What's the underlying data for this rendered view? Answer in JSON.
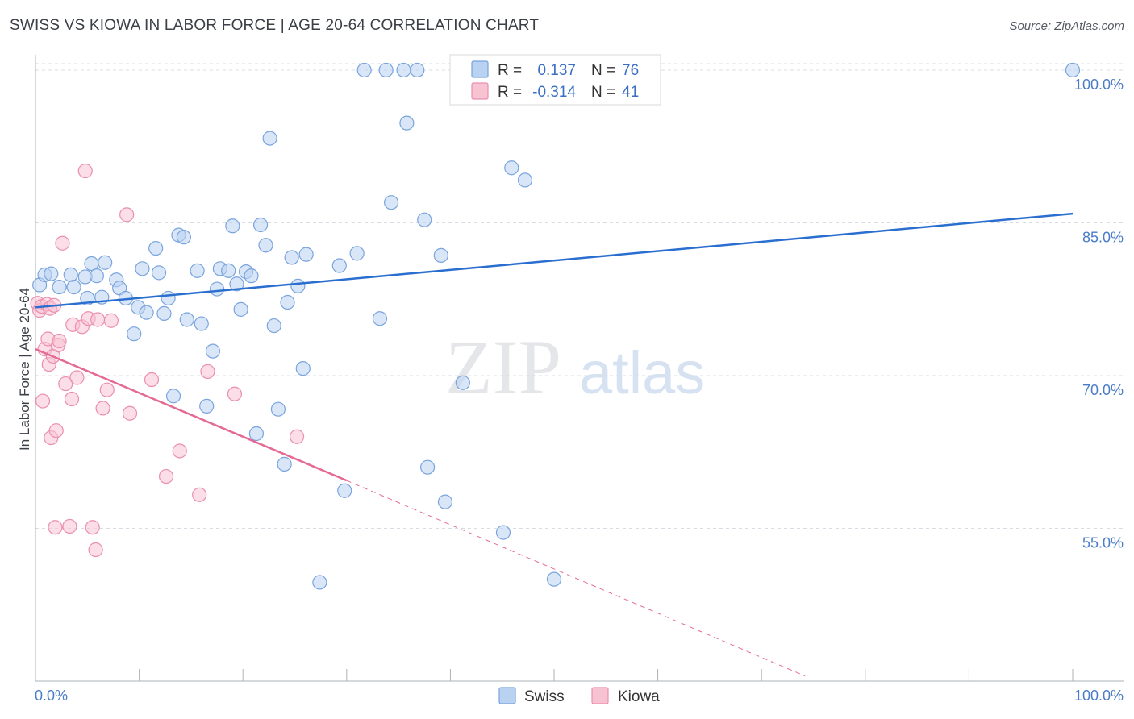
{
  "header": {
    "title": "SWISS VS KIOWA IN LABOR FORCE | AGE 20-64 CORRELATION CHART",
    "source": "Source: ZipAtlas.com"
  },
  "watermark": {
    "zip": "ZIP",
    "atlas": "atlas"
  },
  "colors": {
    "swiss_fill": "#b9d2f2",
    "swiss_stroke": "#7aa4dd",
    "swiss_line": "#2a6fd0",
    "kiowa_fill": "#f7c3d3",
    "kiowa_stroke": "#ea8fae",
    "kiowa_line": "#e46a95",
    "grid": "#d9dde3",
    "tick_text": "#4a7cc7"
  },
  "chart_data": {
    "type": "scatter",
    "title": "SWISS VS KIOWA IN LABOR FORCE | AGE 20-64 CORRELATION CHART",
    "xlabel": "",
    "ylabel": "In Labor Force | Age 20-64",
    "xlim": [
      0,
      100
    ],
    "ylim": [
      40,
      101.5
    ],
    "x_tick_labels": [
      "0.0%",
      "100.0%"
    ],
    "y_ticks": [
      100,
      85,
      70,
      55
    ],
    "y_tick_labels": [
      "100.0%",
      "85.0%",
      "70.0%",
      "55.0%"
    ],
    "legend": [
      {
        "name": "Swiss",
        "r_label": "R =",
        "r_value": "0.137",
        "n_label": "N =",
        "n_value": "76"
      },
      {
        "name": "Kiowa",
        "r_label": "R =",
        "r_value": "-0.314",
        "n_label": "N =",
        "n_value": "41"
      }
    ],
    "series": [
      {
        "name": "Swiss",
        "trend": {
          "x0": 0,
          "y0": 76.7,
          "x1": 100,
          "y1": 85.9
        },
        "points": [
          [
            0.4,
            78.9
          ],
          [
            0.9,
            79.9
          ],
          [
            1.5,
            80.0
          ],
          [
            2.3,
            78.7
          ],
          [
            3.4,
            79.9
          ],
          [
            3.7,
            78.7
          ],
          [
            4.8,
            79.7
          ],
          [
            5.0,
            77.6
          ],
          [
            5.4,
            81.0
          ],
          [
            5.9,
            79.8
          ],
          [
            6.4,
            77.7
          ],
          [
            6.7,
            81.1
          ],
          [
            7.8,
            79.4
          ],
          [
            8.1,
            78.6
          ],
          [
            8.7,
            77.6
          ],
          [
            9.5,
            74.1
          ],
          [
            9.9,
            76.7
          ],
          [
            10.3,
            80.5
          ],
          [
            10.7,
            76.2
          ],
          [
            11.6,
            82.5
          ],
          [
            11.9,
            80.1
          ],
          [
            12.4,
            76.1
          ],
          [
            12.8,
            77.6
          ],
          [
            13.3,
            68.0
          ],
          [
            13.8,
            83.8
          ],
          [
            14.3,
            83.6
          ],
          [
            14.6,
            75.5
          ],
          [
            15.6,
            80.3
          ],
          [
            16.0,
            75.1
          ],
          [
            16.5,
            67.0
          ],
          [
            17.1,
            72.4
          ],
          [
            17.5,
            78.5
          ],
          [
            17.8,
            80.5
          ],
          [
            18.6,
            80.3
          ],
          [
            19.0,
            84.7
          ],
          [
            19.4,
            79.0
          ],
          [
            19.8,
            76.5
          ],
          [
            20.3,
            80.2
          ],
          [
            20.8,
            79.8
          ],
          [
            21.3,
            64.3
          ],
          [
            21.7,
            84.8
          ],
          [
            22.2,
            82.8
          ],
          [
            22.6,
            93.3
          ],
          [
            23.0,
            74.9
          ],
          [
            23.4,
            66.7
          ],
          [
            24.0,
            61.3
          ],
          [
            24.3,
            77.2
          ],
          [
            24.7,
            81.6
          ],
          [
            25.3,
            78.8
          ],
          [
            25.8,
            70.7
          ],
          [
            26.1,
            81.9
          ],
          [
            27.4,
            49.7
          ],
          [
            29.3,
            80.8
          ],
          [
            29.8,
            58.7
          ],
          [
            31.0,
            82.0
          ],
          [
            31.7,
            100.0
          ],
          [
            33.2,
            75.6
          ],
          [
            33.8,
            100.0
          ],
          [
            34.3,
            87.0
          ],
          [
            35.5,
            100.0
          ],
          [
            35.8,
            94.8
          ],
          [
            36.8,
            100.0
          ],
          [
            37.5,
            85.3
          ],
          [
            37.8,
            61.0
          ],
          [
            39.1,
            81.8
          ],
          [
            39.5,
            57.6
          ],
          [
            41.2,
            69.3
          ],
          [
            45.1,
            54.6
          ],
          [
            45.9,
            90.4
          ],
          [
            47.2,
            89.2
          ],
          [
            50.0,
            50.0
          ],
          [
            100.0,
            100.0
          ]
        ]
      },
      {
        "name": "Kiowa",
        "trend": {
          "x0": 0,
          "y0": 72.6,
          "x1": 30,
          "y1": 59.7
        },
        "trend_dashed": {
          "x0": 30,
          "y0": 59.7,
          "x1": 74.2,
          "y1": 40.5
        },
        "points": [
          [
            0.2,
            77.1
          ],
          [
            0.4,
            76.4
          ],
          [
            0.6,
            76.8
          ],
          [
            0.7,
            67.5
          ],
          [
            0.9,
            72.6
          ],
          [
            1.1,
            77.0
          ],
          [
            1.2,
            73.6
          ],
          [
            1.3,
            71.1
          ],
          [
            1.4,
            76.6
          ],
          [
            1.5,
            63.9
          ],
          [
            1.7,
            71.9
          ],
          [
            1.8,
            76.9
          ],
          [
            1.9,
            55.1
          ],
          [
            2.0,
            64.6
          ],
          [
            2.2,
            73.0
          ],
          [
            2.3,
            73.4
          ],
          [
            2.6,
            83.0
          ],
          [
            2.9,
            69.2
          ],
          [
            3.3,
            55.2
          ],
          [
            3.5,
            67.7
          ],
          [
            3.6,
            75.0
          ],
          [
            4.0,
            69.8
          ],
          [
            4.5,
            74.8
          ],
          [
            4.8,
            90.1
          ],
          [
            5.1,
            75.6
          ],
          [
            5.5,
            55.1
          ],
          [
            5.8,
            52.9
          ],
          [
            6.0,
            75.5
          ],
          [
            6.5,
            66.8
          ],
          [
            6.9,
            68.6
          ],
          [
            7.3,
            75.4
          ],
          [
            8.8,
            85.8
          ],
          [
            9.1,
            66.3
          ],
          [
            11.2,
            69.6
          ],
          [
            12.6,
            60.1
          ],
          [
            13.9,
            62.6
          ],
          [
            15.8,
            58.3
          ],
          [
            16.6,
            70.4
          ],
          [
            19.2,
            68.2
          ],
          [
            25.2,
            64.0
          ]
        ]
      }
    ]
  }
}
